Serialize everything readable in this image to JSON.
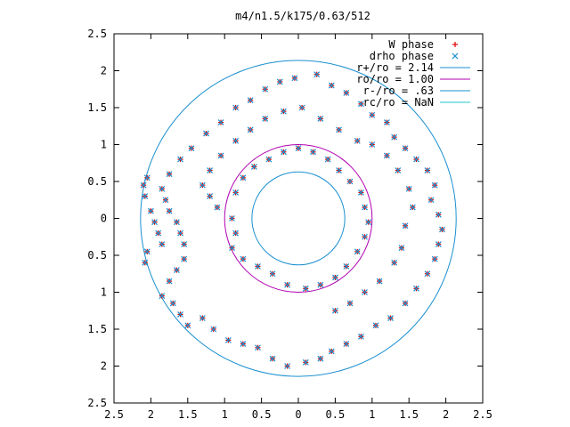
{
  "chart_data": {
    "type": "scatter",
    "title": "m4/n1.5/k175/0.63/512",
    "xlim": [
      -2.5,
      2.5
    ],
    "ylim": [
      -2.5,
      2.5
    ],
    "x_ticks": [
      -2.5,
      -2,
      -1.5,
      -1,
      -0.5,
      0,
      0.5,
      1,
      1.5,
      2,
      2.5
    ],
    "y_ticks": [
      2.5,
      2,
      1.5,
      1,
      0.5,
      0,
      -0.5,
      -1,
      -1.5,
      -2,
      -2.5
    ],
    "x_tick_labels": [
      "2.5",
      "2",
      "1.5",
      "1",
      "0.5",
      "0",
      "0.5",
      "1",
      "1.5",
      "2",
      "2.5"
    ],
    "y_tick_labels": [
      "2.5",
      "2",
      "1.5",
      "1",
      "0.5",
      "0",
      "0.5",
      "1",
      "1.5",
      "2",
      "2.5"
    ],
    "legend_position": "top-right",
    "grid": false,
    "circles": [
      {
        "name": "r+/ro = 2.14",
        "radius": 2.14,
        "color": "#1a8fd0"
      },
      {
        "name": "ro/ro = 1.00",
        "radius": 1.0,
        "color": "#b000b0"
      },
      {
        "name": "r-/ro = .63",
        "radius": 0.63,
        "color": "#1a8fd0"
      },
      {
        "name": "rc/ro = NaN",
        "radius": null,
        "color": "#20c8c8"
      }
    ],
    "series": [
      {
        "name": "W phase",
        "marker": "+",
        "color": "#e00000",
        "points": [
          [
            -2.05,
            0.55
          ],
          [
            -2.1,
            0.45
          ],
          [
            -2.08,
            0.3
          ],
          [
            -2.0,
            0.1
          ],
          [
            -1.95,
            -0.05
          ],
          [
            -1.9,
            -0.2
          ],
          [
            -1.85,
            -0.35
          ],
          [
            -2.05,
            -0.45
          ],
          [
            -2.08,
            -0.6
          ],
          [
            -1.85,
            0.4
          ],
          [
            -1.8,
            0.25
          ],
          [
            -1.75,
            0.1
          ],
          [
            -1.65,
            -0.05
          ],
          [
            -1.6,
            -0.2
          ],
          [
            -1.55,
            -0.35
          ],
          [
            -1.55,
            -0.55
          ],
          [
            -1.65,
            -0.7
          ],
          [
            -1.75,
            -0.85
          ],
          [
            -1.85,
            -1.05
          ],
          [
            -1.7,
            -1.15
          ],
          [
            -1.6,
            -1.3
          ],
          [
            -1.5,
            -1.45
          ],
          [
            -1.3,
            -1.35
          ],
          [
            -1.15,
            -1.5
          ],
          [
            -0.95,
            -1.65
          ],
          [
            -0.75,
            -1.7
          ],
          [
            -0.55,
            -1.75
          ],
          [
            -0.35,
            -1.9
          ],
          [
            -0.15,
            -2.0
          ],
          [
            0.1,
            -1.95
          ],
          [
            0.3,
            -1.9
          ],
          [
            0.45,
            -1.8
          ],
          [
            0.65,
            -1.7
          ],
          [
            0.85,
            -1.6
          ],
          [
            1.05,
            -1.45
          ],
          [
            1.25,
            -1.35
          ],
          [
            1.45,
            -1.15
          ],
          [
            1.6,
            -0.95
          ],
          [
            1.75,
            -0.75
          ],
          [
            1.85,
            -0.55
          ],
          [
            1.9,
            -0.35
          ],
          [
            1.95,
            -0.15
          ],
          [
            1.9,
            0.05
          ],
          [
            1.8,
            0.25
          ],
          [
            1.85,
            0.45
          ],
          [
            1.75,
            0.65
          ],
          [
            1.6,
            0.8
          ],
          [
            1.45,
            0.95
          ],
          [
            1.3,
            1.1
          ],
          [
            1.2,
            1.3
          ],
          [
            1.0,
            1.4
          ],
          [
            0.85,
            1.55
          ],
          [
            0.65,
            1.7
          ],
          [
            0.45,
            1.8
          ],
          [
            0.25,
            1.95
          ],
          [
            -0.05,
            1.9
          ],
          [
            -0.25,
            1.85
          ],
          [
            -0.45,
            1.75
          ],
          [
            -0.65,
            1.6
          ],
          [
            -0.85,
            1.5
          ],
          [
            -1.05,
            1.3
          ],
          [
            -1.25,
            1.15
          ],
          [
            -1.45,
            0.95
          ],
          [
            -1.6,
            0.8
          ],
          [
            -1.75,
            0.6
          ],
          [
            -1.3,
            0.45
          ],
          [
            -1.2,
            0.3
          ],
          [
            -1.1,
            0.15
          ],
          [
            -0.9,
            0.0
          ],
          [
            -0.85,
            -0.2
          ],
          [
            -0.9,
            -0.4
          ],
          [
            -0.75,
            -0.55
          ],
          [
            -0.55,
            -0.65
          ],
          [
            -0.35,
            -0.75
          ],
          [
            -0.15,
            -0.9
          ],
          [
            0.1,
            -0.95
          ],
          [
            0.3,
            -0.9
          ],
          [
            0.5,
            -0.8
          ],
          [
            0.65,
            -0.65
          ],
          [
            0.8,
            -0.45
          ],
          [
            0.9,
            -0.25
          ],
          [
            0.95,
            -0.05
          ],
          [
            0.9,
            0.15
          ],
          [
            0.85,
            0.35
          ],
          [
            0.7,
            0.5
          ],
          [
            0.55,
            0.65
          ],
          [
            0.4,
            0.8
          ],
          [
            0.2,
            0.9
          ],
          [
            0.0,
            0.95
          ],
          [
            -0.2,
            0.9
          ],
          [
            -0.4,
            0.8
          ],
          [
            -0.6,
            0.7
          ],
          [
            -0.75,
            0.55
          ],
          [
            -0.85,
            0.35
          ],
          [
            0.5,
            -1.25
          ],
          [
            0.7,
            -1.15
          ],
          [
            0.9,
            -1.0
          ],
          [
            1.1,
            -0.85
          ],
          [
            1.3,
            -0.6
          ],
          [
            1.4,
            -0.4
          ],
          [
            1.45,
            -0.1
          ],
          [
            1.55,
            0.15
          ],
          [
            1.5,
            0.4
          ],
          [
            1.35,
            0.65
          ],
          [
            1.2,
            0.85
          ],
          [
            1.0,
            1.0
          ],
          [
            0.8,
            1.05
          ],
          [
            0.55,
            1.2
          ],
          [
            0.3,
            1.35
          ],
          [
            0.05,
            1.5
          ],
          [
            -0.2,
            1.45
          ],
          [
            -0.45,
            1.35
          ],
          [
            -0.65,
            1.2
          ],
          [
            -0.85,
            1.05
          ],
          [
            -1.05,
            0.85
          ],
          [
            -1.2,
            0.65
          ]
        ]
      },
      {
        "name": "drho phase",
        "marker": "x",
        "color": "#1a8fd0",
        "points": [
          [
            -2.05,
            0.55
          ],
          [
            -2.1,
            0.45
          ],
          [
            -2.08,
            0.3
          ],
          [
            -2.0,
            0.1
          ],
          [
            -1.95,
            -0.05
          ],
          [
            -1.9,
            -0.2
          ],
          [
            -1.85,
            -0.35
          ],
          [
            -2.05,
            -0.45
          ],
          [
            -2.08,
            -0.6
          ],
          [
            -1.85,
            0.4
          ],
          [
            -1.8,
            0.25
          ],
          [
            -1.75,
            0.1
          ],
          [
            -1.65,
            -0.05
          ],
          [
            -1.6,
            -0.2
          ],
          [
            -1.55,
            -0.35
          ],
          [
            -1.55,
            -0.55
          ],
          [
            -1.65,
            -0.7
          ],
          [
            -1.75,
            -0.85
          ],
          [
            -1.85,
            -1.05
          ],
          [
            -1.7,
            -1.15
          ],
          [
            -1.6,
            -1.3
          ],
          [
            -1.5,
            -1.45
          ],
          [
            -1.3,
            -1.35
          ],
          [
            -1.15,
            -1.5
          ],
          [
            -0.95,
            -1.65
          ],
          [
            -0.75,
            -1.7
          ],
          [
            -0.55,
            -1.75
          ],
          [
            -0.35,
            -1.9
          ],
          [
            -0.15,
            -2.0
          ],
          [
            0.1,
            -1.95
          ],
          [
            0.3,
            -1.9
          ],
          [
            0.45,
            -1.8
          ],
          [
            0.65,
            -1.7
          ],
          [
            0.85,
            -1.6
          ],
          [
            1.05,
            -1.45
          ],
          [
            1.25,
            -1.35
          ],
          [
            1.45,
            -1.15
          ],
          [
            1.6,
            -0.95
          ],
          [
            1.75,
            -0.75
          ],
          [
            1.85,
            -0.55
          ],
          [
            1.9,
            -0.35
          ],
          [
            1.95,
            -0.15
          ],
          [
            1.9,
            0.05
          ],
          [
            1.8,
            0.25
          ],
          [
            1.85,
            0.45
          ],
          [
            1.75,
            0.65
          ],
          [
            1.6,
            0.8
          ],
          [
            1.45,
            0.95
          ],
          [
            1.3,
            1.1
          ],
          [
            1.2,
            1.3
          ],
          [
            1.0,
            1.4
          ],
          [
            0.85,
            1.55
          ],
          [
            0.65,
            1.7
          ],
          [
            0.45,
            1.8
          ],
          [
            0.25,
            1.95
          ],
          [
            -0.05,
            1.9
          ],
          [
            -0.25,
            1.85
          ],
          [
            -0.45,
            1.75
          ],
          [
            -0.65,
            1.6
          ],
          [
            -0.85,
            1.5
          ],
          [
            -1.05,
            1.3
          ],
          [
            -1.25,
            1.15
          ],
          [
            -1.45,
            0.95
          ],
          [
            -1.6,
            0.8
          ],
          [
            -1.75,
            0.6
          ],
          [
            -1.3,
            0.45
          ],
          [
            -1.2,
            0.3
          ],
          [
            -1.1,
            0.15
          ],
          [
            -0.9,
            0.0
          ],
          [
            -0.85,
            -0.2
          ],
          [
            -0.9,
            -0.4
          ],
          [
            -0.75,
            -0.55
          ],
          [
            -0.55,
            -0.65
          ],
          [
            -0.35,
            -0.75
          ],
          [
            -0.15,
            -0.9
          ],
          [
            0.1,
            -0.95
          ],
          [
            0.3,
            -0.9
          ],
          [
            0.5,
            -0.8
          ],
          [
            0.65,
            -0.65
          ],
          [
            0.8,
            -0.45
          ],
          [
            0.9,
            -0.25
          ],
          [
            0.95,
            -0.05
          ],
          [
            0.9,
            0.15
          ],
          [
            0.85,
            0.35
          ],
          [
            0.7,
            0.5
          ],
          [
            0.55,
            0.65
          ],
          [
            0.4,
            0.8
          ],
          [
            0.2,
            0.9
          ],
          [
            0.0,
            0.95
          ],
          [
            -0.2,
            0.9
          ],
          [
            -0.4,
            0.8
          ],
          [
            -0.6,
            0.7
          ],
          [
            -0.75,
            0.55
          ],
          [
            -0.85,
            0.35
          ],
          [
            0.5,
            -1.25
          ],
          [
            0.7,
            -1.15
          ],
          [
            0.9,
            -1.0
          ],
          [
            1.1,
            -0.85
          ],
          [
            1.3,
            -0.6
          ],
          [
            1.4,
            -0.4
          ],
          [
            1.45,
            -0.1
          ],
          [
            1.55,
            0.15
          ],
          [
            1.5,
            0.4
          ],
          [
            1.35,
            0.65
          ],
          [
            1.2,
            0.85
          ],
          [
            1.0,
            1.0
          ],
          [
            0.8,
            1.05
          ],
          [
            0.55,
            1.2
          ],
          [
            0.3,
            1.35
          ],
          [
            0.05,
            1.5
          ],
          [
            -0.2,
            1.45
          ],
          [
            -0.45,
            1.35
          ],
          [
            -0.65,
            1.2
          ],
          [
            -0.85,
            1.05
          ],
          [
            -1.05,
            0.85
          ],
          [
            -1.2,
            0.65
          ]
        ]
      }
    ]
  }
}
